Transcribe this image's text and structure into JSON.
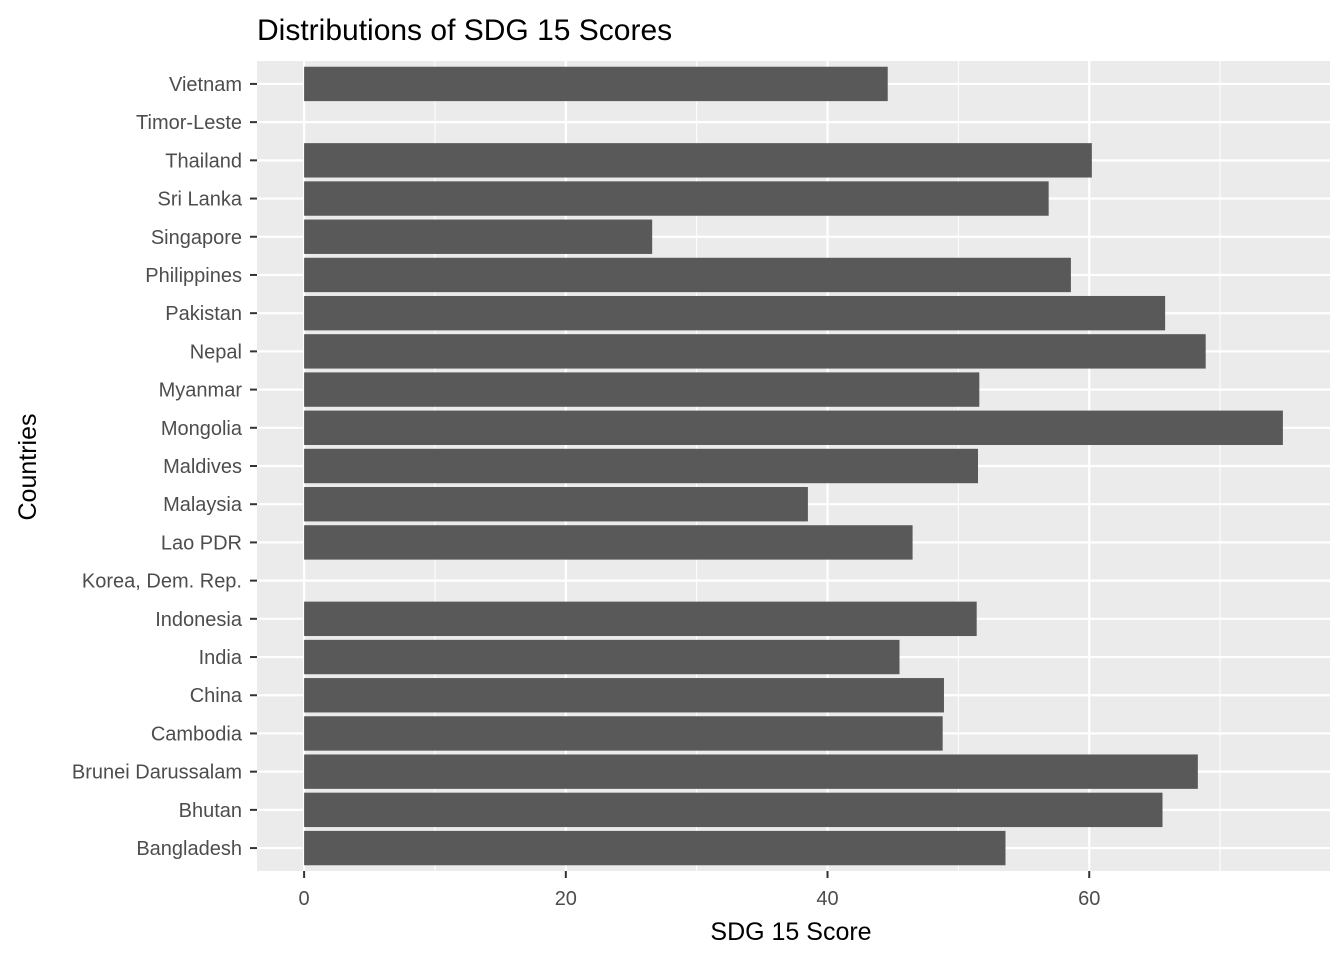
{
  "chart_data": {
    "type": "bar",
    "orientation": "horizontal",
    "title": "Distributions of SDG 15 Scores",
    "xlabel": "SDG 15 Score",
    "ylabel": "Countries",
    "categories": [
      "Bangladesh",
      "Bhutan",
      "Brunei Darussalam",
      "Cambodia",
      "China",
      "India",
      "Indonesia",
      "Korea, Dem. Rep.",
      "Lao PDR",
      "Malaysia",
      "Maldives",
      "Mongolia",
      "Myanmar",
      "Nepal",
      "Pakistan",
      "Philippines",
      "Singapore",
      "Sri Lanka",
      "Thailand",
      "Timor-Leste",
      "Vietnam"
    ],
    "values": [
      53.6,
      65.6,
      68.3,
      48.8,
      48.9,
      45.5,
      51.4,
      null,
      46.5,
      38.5,
      51.5,
      74.8,
      51.6,
      68.9,
      65.8,
      58.6,
      26.6,
      56.9,
      60.2,
      null,
      44.6
    ],
    "xlim": [
      -3.6,
      78.4
    ],
    "xticks": [
      0,
      20,
      40,
      60
    ],
    "xtick_labels": [
      "0",
      "20",
      "40",
      "60"
    ],
    "grid": true,
    "colors": {
      "bar": "#595959",
      "panel": "#ebebeb",
      "grid": "#ffffff",
      "tick": "#333333"
    }
  }
}
